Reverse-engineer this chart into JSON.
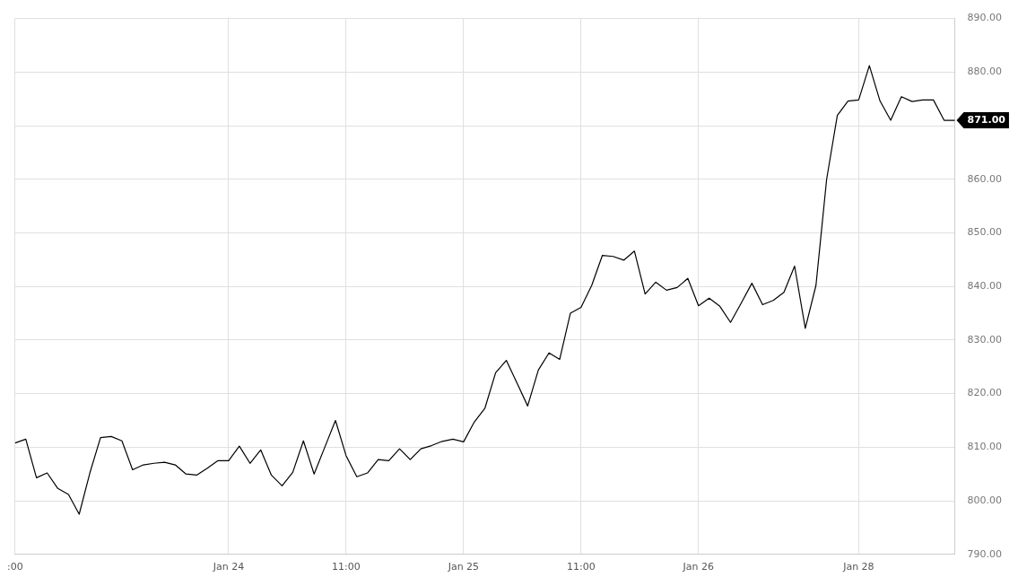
{
  "chart_data": {
    "type": "line",
    "categories": [
      ":00",
      null,
      null,
      null,
      null,
      null,
      null,
      null,
      null,
      null,
      null,
      null,
      null,
      null,
      null,
      null,
      null,
      null,
      null,
      null,
      "Jan 24",
      null,
      null,
      null,
      null,
      null,
      null,
      null,
      null,
      null,
      null,
      "11:00",
      null,
      null,
      null,
      null,
      null,
      null,
      null,
      null,
      null,
      null,
      "Jan 25",
      null,
      null,
      null,
      null,
      null,
      null,
      null,
      null,
      null,
      null,
      "11:00",
      null,
      null,
      null,
      null,
      null,
      null,
      null,
      null,
      null,
      null,
      "Jan 26",
      null,
      null,
      null,
      null,
      null,
      null,
      null,
      null,
      null,
      null,
      null,
      null,
      null,
      null,
      "Jan 28",
      null,
      null,
      null,
      null,
      null,
      null,
      null,
      null,
      null
    ],
    "series": [
      {
        "color": "#000000",
        "values": [
          810.8,
          811.5,
          804.3,
          805.2,
          802.3,
          801.2,
          797.5,
          805.2,
          811.8,
          812.0,
          811.2,
          805.8,
          806.7,
          807.0,
          807.2,
          806.7,
          805.0,
          804.8,
          806.1,
          807.5,
          807.5,
          810.2,
          807.0,
          809.5,
          804.8,
          802.8,
          805.3,
          811.2,
          805.0,
          810.0,
          815.0,
          808.4,
          804.5,
          805.2,
          807.7,
          807.5,
          809.7,
          807.7,
          809.7,
          810.3,
          811.1,
          811.5,
          811.0,
          814.7,
          817.3,
          823.9,
          826.2,
          822.0,
          817.7,
          824.4,
          827.6,
          826.4,
          835.0,
          836.1,
          840.2,
          845.8,
          845.6,
          844.9,
          846.6,
          838.6,
          840.8,
          839.3,
          839.8,
          841.5,
          836.4,
          837.8,
          836.3,
          833.3,
          836.9,
          840.6,
          836.6,
          837.4,
          838.9,
          843.8,
          832.2,
          840.2,
          860.0,
          871.9,
          874.6,
          874.8,
          881.2,
          874.6,
          871.0,
          875.4,
          874.5,
          874.8,
          874.8,
          871.0,
          871.0
        ]
      }
    ],
    "ylim": [
      790,
      890
    ],
    "yticks": [
      {
        "value": 790,
        "label": "790.00"
      },
      {
        "value": 800,
        "label": "800.00"
      },
      {
        "value": 810,
        "label": "810.00"
      },
      {
        "value": 820,
        "label": "820.00"
      },
      {
        "value": 830,
        "label": "830.00"
      },
      {
        "value": 840,
        "label": "840.00"
      },
      {
        "value": 850,
        "label": "850.00"
      },
      {
        "value": 860,
        "label": "860.00"
      },
      {
        "value": 870,
        "label": null
      },
      {
        "value": 880,
        "label": "880.00"
      },
      {
        "value": 890,
        "label": "890.00"
      }
    ],
    "annotations": [
      "871.00"
    ],
    "grid": true,
    "marker": "none",
    "line_style": "solid"
  }
}
